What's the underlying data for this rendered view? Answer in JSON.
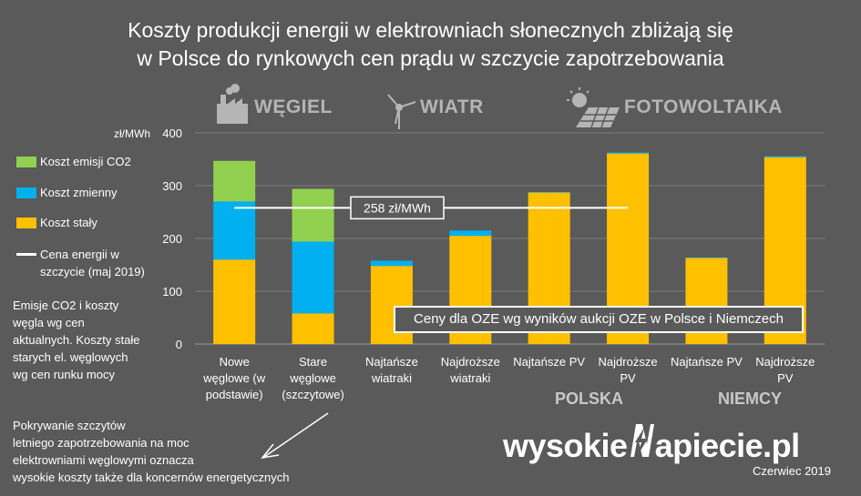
{
  "title_line1": "Koszty produkcji energii w elektrowniach słonecznych zbliżają się",
  "title_line2": "w Polsce do rynkowych cen prądu w szczycie zapotrzebowania",
  "headers": {
    "coal": "WĘGIEL",
    "wind": "WIATR",
    "pv": "FOTOWOLTAIKA"
  },
  "legend": {
    "emission": "Koszt emisji CO2",
    "variable": "Koszt zmienny",
    "fixed": "Koszt stały",
    "price_line1": "Cena energii w",
    "price_line2": "szczycie (maj 2019)"
  },
  "notes": {
    "coal_line1": "Emisje CO2 i koszty",
    "coal_line2": "węgla wg cen",
    "coal_line3": "aktualnych. Koszty stałe",
    "coal_line4": "starych el. węglowych",
    "coal_line5": "wg cen runku mocy",
    "bottom_line1": "Pokrywanie szczytów",
    "bottom_line2": "letniego zapotrzebowania na moc",
    "bottom_line3": "elektrowniami węglowymi oznacza",
    "bottom_line4": "wysokie koszty także dla koncernów energetycznych",
    "oze": "Ceny dla OZE wg wyników aukcji OZE w Polsce i Niemczech"
  },
  "countries": {
    "pl": "POLSKA",
    "de": "NIEMCY"
  },
  "logo": {
    "left": "wysokie",
    "right": "apiecie.pl"
  },
  "date": "Czerwiec 2019",
  "colors": {
    "fixed": "#ffc000",
    "variable": "#00b0f0",
    "emission": "#92d050",
    "background": "#5a5a5a",
    "axis": "#ffffff"
  },
  "chart_data": {
    "type": "bar",
    "stacked": true,
    "ylabel": "zł/MWh",
    "ylim": [
      0,
      400
    ],
    "yticks": [
      0,
      100,
      200,
      300,
      400
    ],
    "categories": [
      [
        "Nowe",
        "węglowe (w",
        "podstawie)"
      ],
      [
        "Stare",
        "węglowe",
        "(szczytowe)"
      ],
      [
        "Najtańsze",
        "wiatraki"
      ],
      [
        "Najdroższe",
        "wiatraki"
      ],
      [
        "Najtańsze PV"
      ],
      [
        "Najdroższe",
        "PV"
      ],
      [
        "Najtańsze PV"
      ],
      [
        "Najdroższe",
        "PV"
      ]
    ],
    "series": [
      {
        "name": "Koszt stały",
        "color": "#ffc000",
        "values": [
          160,
          58,
          148,
          205,
          287,
          361,
          163,
          354
        ]
      },
      {
        "name": "Koszt zmienny",
        "color": "#00b0f0",
        "values": [
          110,
          136,
          10,
          10,
          1,
          2,
          1,
          2
        ]
      },
      {
        "name": "Koszt emisji CO2",
        "color": "#92d050",
        "values": [
          77,
          100,
          0,
          0,
          0,
          0,
          0,
          0
        ]
      }
    ],
    "reference_line": {
      "name": "Cena energii w szczycie (maj 2019)",
      "value": 258,
      "label": "258 zł/MWh"
    }
  }
}
